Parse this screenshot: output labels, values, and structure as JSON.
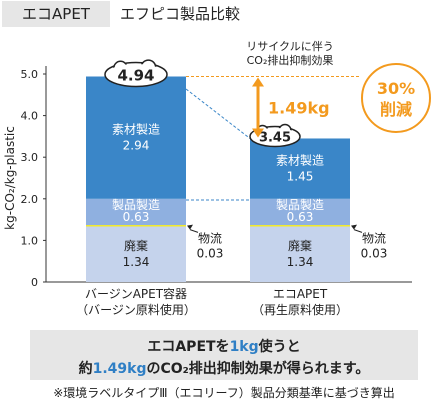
{
  "header": {
    "tag_label": "エコAPET",
    "title": "エフピコ製品比較"
  },
  "chart_data": {
    "type": "bar",
    "stacked": true,
    "ylabel": "kg-CO₂/kg-plastic",
    "ylim": [
      0,
      5.0
    ],
    "yticks": [
      "0",
      "1.0",
      "2.0",
      "3.0",
      "4.0",
      "5.0"
    ],
    "categories": [
      {
        "line1": "バージンAPET容器",
        "line2": "（バージン原料使用）"
      },
      {
        "line1": "エコAPET",
        "line2": "（再生原料使用）"
      }
    ],
    "series": [
      {
        "name": "廃棄",
        "values": [
          1.34,
          1.34
        ],
        "color": "#c5d3ec",
        "labels": [
          "1.34",
          "1.34"
        ],
        "label_color": "#222222"
      },
      {
        "name": "物流",
        "values": [
          0.03,
          0.03
        ],
        "color": "#f2ea2a",
        "labels": [
          "0.03",
          "0.03"
        ],
        "label_color": "#222222"
      },
      {
        "name": "製品製造",
        "values": [
          0.63,
          0.63
        ],
        "color": "#8fb0e0",
        "labels": [
          "0.63",
          "0.63"
        ],
        "label_color": "#ffffff"
      },
      {
        "name": "素材製造",
        "values": [
          2.94,
          1.45
        ],
        "color": "#3a86c8",
        "labels": [
          "2.94",
          "1.45"
        ],
        "label_color": "#ffffff"
      }
    ],
    "totals": [
      "4.94",
      "3.45"
    ],
    "reduction": {
      "caption_line1": "リサイクルに伴う",
      "caption_line2": "CO₂排出抑制効果",
      "amount": "1.49kg",
      "percent": "30%",
      "percent_label": "削減"
    }
  },
  "footer": {
    "line1_a": "エコAPETを",
    "line1_b": "1kg",
    "line1_c": "使うと",
    "line2_a": "約",
    "line2_b": "1.49kg",
    "line2_c": "のCO₂排出抑制効果が得られます。",
    "note": "※環境ラベルタイプⅢ（エコリーフ）製品分類基準に基づき算出"
  },
  "colors": {
    "accent_orange": "#f39a1e",
    "highlight_blue": "#2f7fc5"
  }
}
